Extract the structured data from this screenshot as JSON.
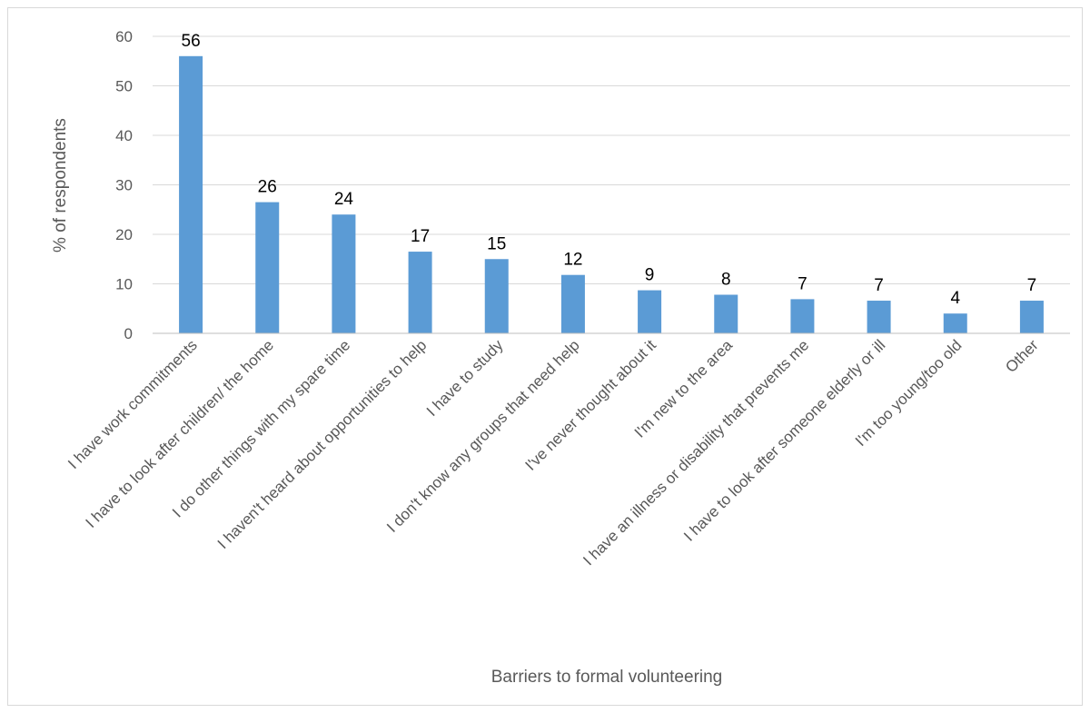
{
  "chart_data": {
    "type": "bar",
    "title": "",
    "xlabel": "Barriers to formal volunteering",
    "ylabel": "% of respondents",
    "ylim": [
      0,
      60
    ],
    "yticks": [
      0,
      10,
      20,
      30,
      40,
      50,
      60
    ],
    "grid": true,
    "legend": "none",
    "bar_color": "#5b9bd5",
    "categories": [
      "I have work commitments",
      "I have to look after children/ the home",
      "I do other things with my spare time",
      "I haven't heard about opportunities to help",
      "I have to study",
      "I don't know any groups that need help",
      "I've never thought about it",
      "I'm new to the area",
      "I have an illness or disability that prevents me",
      "I have to look after someone elderly or ill",
      "I'm too young/too old",
      "Other"
    ],
    "values": [
      56,
      26.5,
      24,
      16.5,
      15,
      11.8,
      8.7,
      7.8,
      6.9,
      6.6,
      4,
      6.6
    ],
    "data_labels": [
      "56",
      "26",
      "24",
      "17",
      "15",
      "12",
      "9",
      "8",
      "7",
      "7",
      "4",
      "7"
    ]
  }
}
